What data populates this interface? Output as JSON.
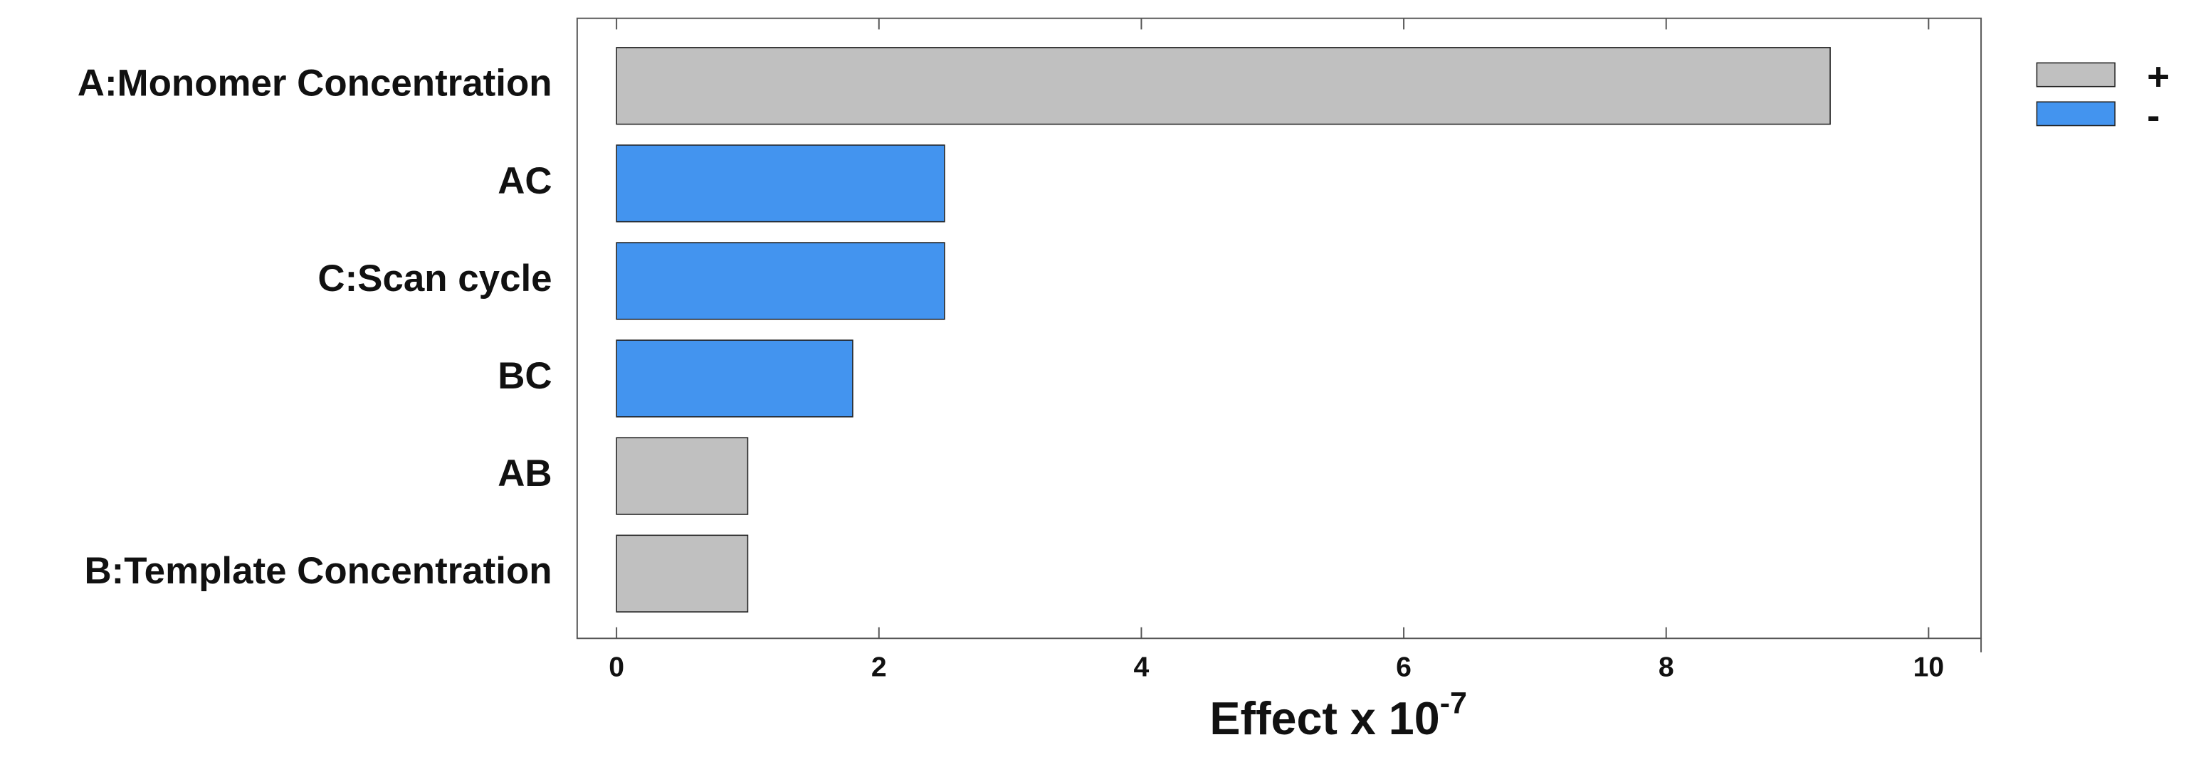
{
  "chart_data": {
    "type": "hbar",
    "categories": [
      "A:Monomer Concentration",
      "AC",
      "C:Scan cycle",
      "BC",
      "AB",
      "B:Template Concentration"
    ],
    "series": [
      {
        "name": "+",
        "color": "#c0c0c0",
        "values": [
          9.25,
          null,
          null,
          null,
          1.0,
          1.0
        ]
      },
      {
        "name": "-",
        "color": "#4394ef",
        "values": [
          null,
          2.5,
          2.5,
          1.8,
          null,
          null
        ]
      }
    ],
    "x_label": {
      "text": "Effect x 10",
      "superscript": "-7"
    },
    "xlim": [
      -0.3,
      10.4
    ],
    "xticks": [
      0,
      2,
      4,
      6,
      8,
      10
    ],
    "legend": "right"
  }
}
